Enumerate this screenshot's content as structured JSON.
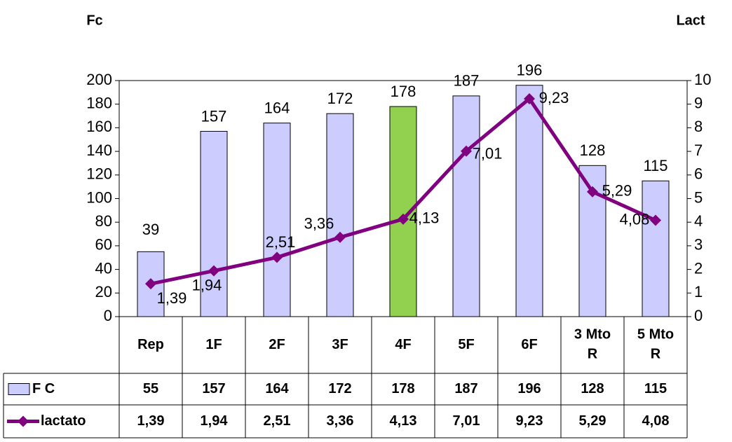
{
  "chart_data": {
    "type": "bar_line",
    "y_title": "Fc",
    "y2_title": "Lact",
    "categories": [
      "Rep",
      "1F",
      "2F",
      "3F",
      "4F",
      "5F",
      "6F",
      "3 Mto R",
      "5 Mto R"
    ],
    "series": [
      {
        "name": "F C",
        "type": "bar",
        "color": "#ccccff",
        "colors": [
          "#ccccff",
          "#ccccff",
          "#ccccff",
          "#ccccff",
          "#92d050",
          "#ccccff",
          "#ccccff",
          "#ccccff",
          "#ccccff"
        ],
        "values": [
          55,
          157,
          164,
          172,
          178,
          187,
          196,
          128,
          115
        ]
      },
      {
        "name": "lactato",
        "type": "line",
        "axis": "y2",
        "color": "#800080",
        "values": [
          1.39,
          1.94,
          2.51,
          3.36,
          4.13,
          7.01,
          9.23,
          5.29,
          4.08
        ],
        "value_labels": [
          "1,39",
          "1,94",
          "2,51",
          "3,36",
          "4,13",
          "7,01",
          "9,23",
          "5,29",
          "4,08"
        ]
      }
    ],
    "annotations": [
      "39"
    ],
    "ylim": [
      0,
      200
    ],
    "yticks": [
      0,
      20,
      40,
      60,
      80,
      100,
      120,
      140,
      160,
      180,
      200
    ],
    "y2lim": [
      0,
      10
    ],
    "y2ticks": [
      0,
      1,
      2,
      3,
      4,
      5,
      6,
      7,
      8,
      9,
      10
    ]
  }
}
